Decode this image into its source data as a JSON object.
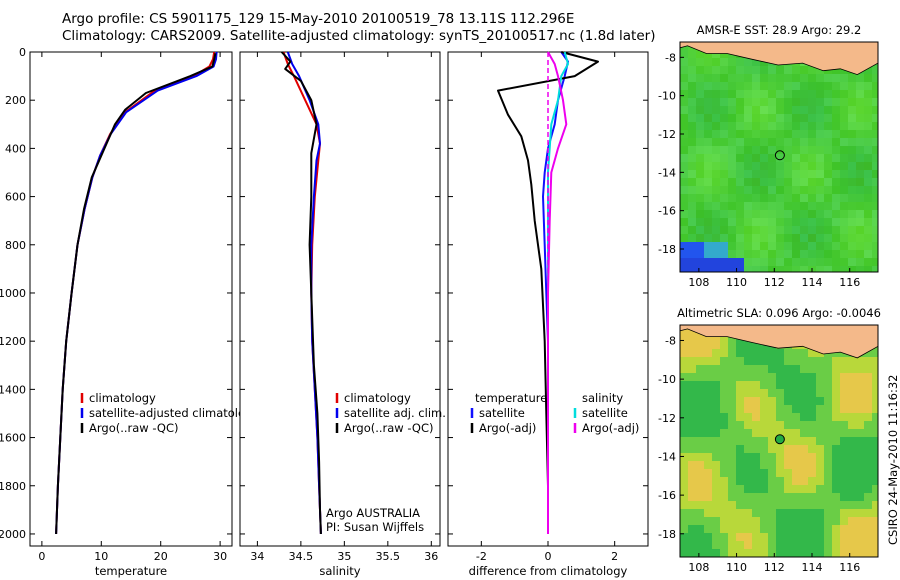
{
  "header": {
    "line1": "Argo profile: CS 5901175_129 15-May-2010 20100519_78 13.11S 112.296E",
    "line2": "Climatology: CARS2009. Satellite-adjusted climatology: synTS_20100517.nc (1.8d later)"
  },
  "footer_stamp": "CSIRO 24-May-2010 11:16:32",
  "colors": {
    "climatology": "#e00000",
    "satellite": "#0000ee",
    "argo": "#000000",
    "temp_diff_sat": "#1010ff",
    "sal_diff_sat": "#00dddd",
    "sal_diff_argo": "#ee00ee"
  },
  "chart_data": [
    {
      "type": "line",
      "xlabel": "temperature",
      "ylabel": "",
      "xlim": [
        -2,
        32
      ],
      "ylim": [
        2050,
        0
      ],
      "xticks": [
        0,
        10,
        20,
        30
      ],
      "yticks": [
        0,
        200,
        400,
        600,
        800,
        1000,
        1200,
        1400,
        1600,
        1800,
        2000
      ],
      "legend": [
        "climatology",
        "satellite-adjusted climatology",
        "Argo(..raw -QC)"
      ],
      "series": [
        {
          "name": "climatology",
          "color": "#e00000",
          "x": [
            29.0,
            28.8,
            28.2,
            25.5,
            19.0,
            14.0,
            11.5,
            9.8,
            8.5,
            7.2,
            6.0,
            5.0,
            4.1,
            3.5,
            3.1,
            2.7,
            2.4
          ],
          "y": [
            0,
            30,
            60,
            100,
            160,
            250,
            340,
            430,
            520,
            650,
            800,
            1000,
            1200,
            1400,
            1600,
            1800,
            2000
          ]
        },
        {
          "name": "satellite-adjusted climatology",
          "color": "#0000ee",
          "x": [
            29.4,
            29.3,
            28.9,
            26.0,
            19.5,
            14.2,
            11.6,
            9.8,
            8.5,
            7.2,
            6.0,
            5.0,
            4.1,
            3.5,
            3.1,
            2.7,
            2.4
          ],
          "y": [
            0,
            30,
            60,
            100,
            160,
            250,
            340,
            430,
            520,
            650,
            800,
            1000,
            1200,
            1400,
            1600,
            1800,
            2000
          ]
        },
        {
          "name": "Argo(..raw -QC)",
          "color": "#000000",
          "x": [
            29.2,
            29.0,
            28.7,
            25.0,
            17.5,
            14.0,
            12.3,
            10.0,
            8.4,
            7.1,
            6.0,
            5.0,
            4.1,
            3.5,
            3.1,
            2.7,
            2.4
          ],
          "y": [
            5,
            30,
            60,
            100,
            170,
            240,
            300,
            430,
            520,
            650,
            800,
            1000,
            1200,
            1400,
            1600,
            1800,
            2000
          ]
        }
      ]
    },
    {
      "type": "line",
      "xlabel": "salinity",
      "xlim": [
        33.8,
        36.1
      ],
      "ylim": [
        2050,
        0
      ],
      "xticks": [
        34,
        34.5,
        35,
        35.5,
        36
      ],
      "legend": [
        "climatology",
        "satellite adj. clim.",
        "Argo(..raw -QC)"
      ],
      "series": [
        {
          "name": "climatology",
          "color": "#e00000",
          "x": [
            34.3,
            34.35,
            34.42,
            34.55,
            34.68,
            34.72,
            34.7,
            34.66,
            34.63,
            34.62,
            34.63,
            34.66,
            34.69,
            34.71,
            34.72,
            34.73
          ],
          "y": [
            0,
            50,
            100,
            200,
            300,
            380,
            450,
            600,
            800,
            1000,
            1200,
            1400,
            1600,
            1800,
            1900,
            2000
          ]
        },
        {
          "name": "satellite adj. clim.",
          "color": "#0000ee",
          "x": [
            34.35,
            34.4,
            34.48,
            34.6,
            34.7,
            34.72,
            34.68,
            34.65,
            34.62,
            34.62,
            34.63,
            34.66,
            34.69,
            34.71,
            34.72,
            34.73
          ],
          "y": [
            0,
            50,
            100,
            200,
            300,
            380,
            450,
            600,
            800,
            1000,
            1200,
            1400,
            1600,
            1800,
            1900,
            2000
          ]
        },
        {
          "name": "Argo(..raw -QC)",
          "color": "#000000",
          "x": [
            34.28,
            34.38,
            34.32,
            34.5,
            34.62,
            34.68,
            34.62,
            34.62,
            34.6,
            34.62,
            34.65,
            34.69,
            34.71,
            34.72,
            34.73
          ],
          "y": [
            0,
            40,
            70,
            120,
            200,
            300,
            420,
            600,
            800,
            1000,
            1300,
            1500,
            1700,
            1900,
            2000
          ]
        }
      ]
    },
    {
      "type": "line",
      "xlabel": "difference from climatology",
      "xlim": [
        -3,
        3
      ],
      "ylim": [
        2050,
        0
      ],
      "xticks": [
        -2,
        0,
        2
      ],
      "legend": [
        "temperature",
        "satellite",
        "Argo(-adj)",
        "salinity",
        "satellite",
        "Argo(-adj)"
      ],
      "series": [
        {
          "name": "temperature satellite",
          "color": "#1010ff",
          "x": [
            0.4,
            0.6,
            0.5,
            0.3,
            0.2,
            0.0,
            -0.1,
            -0.15,
            -0.1,
            -0.05,
            0.0,
            0.0,
            0.0,
            0.0
          ],
          "y": [
            0,
            40,
            100,
            200,
            300,
            400,
            500,
            600,
            800,
            1000,
            1200,
            1500,
            1800,
            2000
          ]
        },
        {
          "name": "temperature Argo(-adj)",
          "color": "#000000",
          "x": [
            0.4,
            1.5,
            0.8,
            -1.5,
            -1.2,
            -0.8,
            -0.6,
            -0.5,
            -0.4,
            -0.2,
            -0.1,
            -0.05,
            0.0,
            0.0
          ],
          "y": [
            0,
            40,
            100,
            160,
            260,
            350,
            450,
            550,
            700,
            900,
            1200,
            1500,
            1800,
            2000
          ]
        },
        {
          "name": "salinity satellite",
          "color": "#00dddd",
          "x": [
            0.5,
            0.6,
            0.4,
            0.3,
            0.1,
            0.05,
            0.0,
            0.0,
            0.0,
            0.0,
            0.0,
            0.0
          ],
          "y": [
            0,
            50,
            100,
            200,
            300,
            400,
            500,
            700,
            1000,
            1400,
            1800,
            2000
          ]
        },
        {
          "name": "salinity Argo(-adj)",
          "color": "#ee00ee",
          "x": [
            0.0,
            0.2,
            0.3,
            0.45,
            0.55,
            0.3,
            0.1,
            0.05,
            0.0,
            0.0,
            0.0,
            0.0
          ],
          "y": [
            0,
            50,
            100,
            200,
            300,
            400,
            500,
            700,
            1000,
            1400,
            1800,
            2000
          ]
        }
      ]
    },
    {
      "type": "heatmap",
      "title": "AMSR-E SST: 28.9 Argo: 29.2",
      "xlim": [
        107,
        117.5
      ],
      "ylim": [
        -19.2,
        -7.2
      ],
      "xticks": [
        108,
        110,
        112,
        114,
        116
      ],
      "yticks": [
        -8,
        -10,
        -12,
        -14,
        -16,
        -18
      ],
      "marker": {
        "lon": 112.296,
        "lat": -13.11
      }
    },
    {
      "type": "heatmap",
      "title": "Altimetric SLA: 0.096 Argo: -0.0046",
      "xlim": [
        107,
        117.5
      ],
      "ylim": [
        -19.2,
        -7.2
      ],
      "xticks": [
        108,
        110,
        112,
        114,
        116
      ],
      "yticks": [
        -8,
        -10,
        -12,
        -14,
        -16,
        -18
      ],
      "marker": {
        "lon": 112.296,
        "lat": -13.11
      }
    }
  ]
}
